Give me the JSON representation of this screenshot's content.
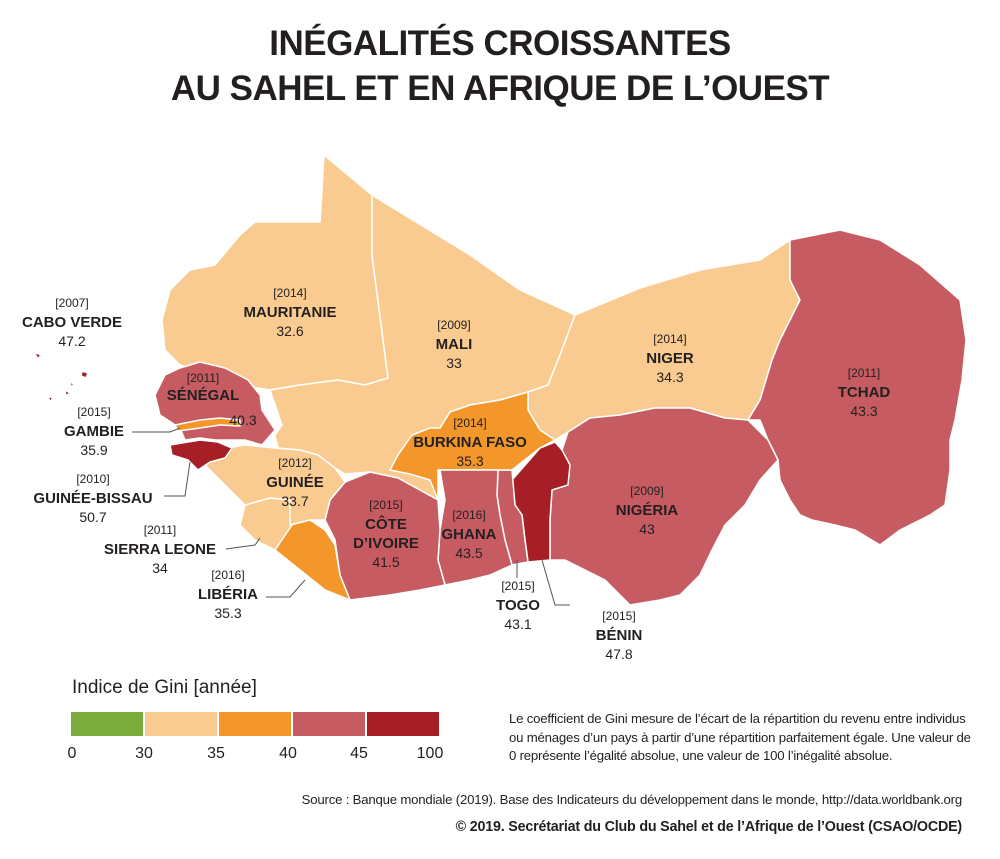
{
  "title": {
    "line1": "INÉGALITÉS CROISSANTES",
    "line2": "AU SAHEL ET EN AFRIQUE DE L’OUEST"
  },
  "countries": {
    "cabo_verde": {
      "year": "[2007]",
      "name": "CABO VERDE",
      "value": "47.2"
    },
    "mauritanie": {
      "year": "[2014]",
      "name": "MAURITANIE",
      "value": "32.6"
    },
    "mali": {
      "year": "[2009]",
      "name": "MALI",
      "value": "33"
    },
    "niger": {
      "year": "[2014]",
      "name": "NIGER",
      "value": "34.3"
    },
    "tchad": {
      "year": "[2011]",
      "name": "TCHAD",
      "value": "43.3"
    },
    "senegal": {
      "year": "[2011]",
      "name": "SÉNÉGAL",
      "value": "40.3"
    },
    "gambie": {
      "year": "[2015]",
      "name": "GAMBIE",
      "value": "35.9"
    },
    "guinee_bissau": {
      "year": "[2010]",
      "name": "GUINÉE-BISSAU",
      "value": "50.7"
    },
    "guinee": {
      "year": "[2012]",
      "name": "GUINÉE",
      "value": "33.7"
    },
    "sierra_leone": {
      "year": "[2011]",
      "name": "SIERRA LEONE",
      "value": "34"
    },
    "liberia": {
      "year": "[2016]",
      "name": "LIBÉRIA",
      "value": "35.3"
    },
    "burkina_faso": {
      "year": "[2014]",
      "name": "BURKINA FASO",
      "value": "35.3"
    },
    "cote_divoire": {
      "year": "[2015]",
      "name1": "CÔTE",
      "name2": "D’IVOIRE",
      "value": "41.5"
    },
    "ghana": {
      "year": "[2016]",
      "name": "GHANA",
      "value": "43.5"
    },
    "togo": {
      "year": "[2015]",
      "name": "TOGO",
      "value": "43.1"
    },
    "benin": {
      "year": "[2015]",
      "name": "BÉNIN",
      "value": "47.8"
    },
    "nigeria": {
      "year": "[2009]",
      "name": "NIGÉRIA",
      "value": "43"
    }
  },
  "legend": {
    "title": "Indice de Gini [année]",
    "ticks": [
      "0",
      "30",
      "35",
      "40",
      "45",
      "100"
    ],
    "colors": [
      "#7aac3d",
      "#f9cb90",
      "#f3972a",
      "#c65c62",
      "#a61e26"
    ]
  },
  "description": "Le coefficient de Gini mesure de l’écart de la répartition du revenu entre individus ou ménages d’un pays à partir d’une répartition parfaitement égale. Une valeur de 0 représente l’égalité absolue, une valeur de 100 l’inégalité absolue.",
  "source": "Source : Banque mondiale (2019). Base des Indicateurs du développement dans le monde, http://data.worldbank.org",
  "copyright": "© 2019. Secrétariat du Club du Sahel et de l’Afrique de l’Ouest (CSAO/OCDE)"
}
